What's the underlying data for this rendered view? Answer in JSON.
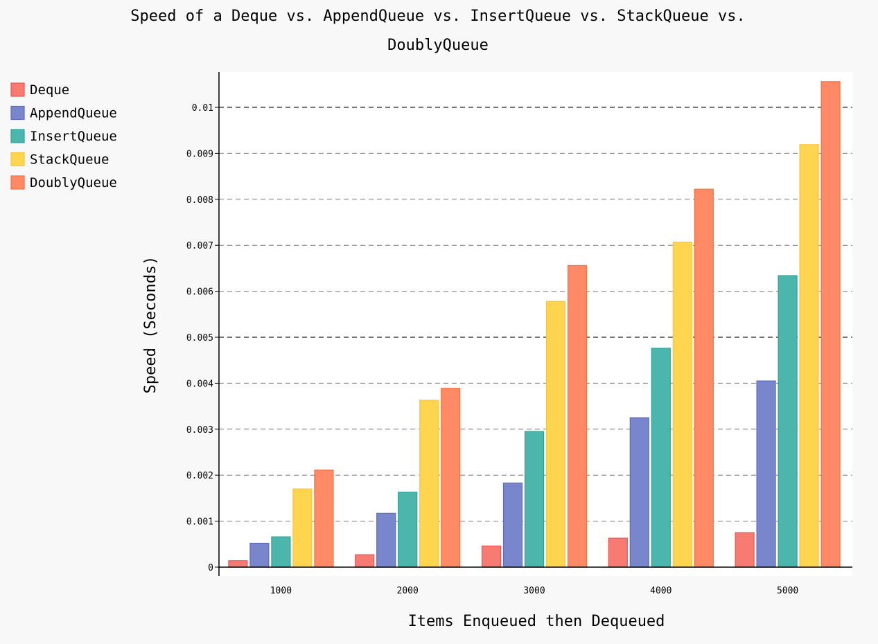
{
  "chart_data": {
    "type": "bar",
    "title_lines": [
      "Speed of a Deque vs. AppendQueue vs. InsertQueue vs. StackQueue vs.",
      "DoublyQueue"
    ],
    "xlabel": "Items Enqueued then Dequeued",
    "ylabel": "Speed (Seconds)",
    "categories": [
      "1000",
      "2000",
      "3000",
      "4000",
      "5000"
    ],
    "ylim": [
      0,
      0.0108
    ],
    "yticks": [
      {
        "value": 0,
        "label": "0"
      },
      {
        "value": 0.001,
        "label": "0.001"
      },
      {
        "value": 0.002,
        "label": "0.002"
      },
      {
        "value": 0.003,
        "label": "0.003"
      },
      {
        "value": 0.004,
        "label": "0.004"
      },
      {
        "value": 0.005,
        "label": "0.005"
      },
      {
        "value": 0.006,
        "label": "0.006"
      },
      {
        "value": 0.007,
        "label": "0.007"
      },
      {
        "value": 0.008,
        "label": "0.008"
      },
      {
        "value": 0.009,
        "label": "0.009"
      },
      {
        "value": 0.01,
        "label": "0.01"
      }
    ],
    "major_gridlines": [
      0.005,
      0.01
    ],
    "grid": true,
    "legend_position": "top-left",
    "series": [
      {
        "name": "Deque",
        "color": "#f77a73",
        "stroke": "#e8554e",
        "values": [
          0.00014,
          0.00027,
          0.00046,
          0.00063,
          0.00075
        ]
      },
      {
        "name": "AppendQueue",
        "color": "#7986cb",
        "stroke": "#5c6bc0",
        "values": [
          0.00052,
          0.00117,
          0.00183,
          0.00325,
          0.00405
        ]
      },
      {
        "name": "InsertQueue",
        "color": "#4db6ac",
        "stroke": "#26a69a",
        "values": [
          0.00066,
          0.00163,
          0.00295,
          0.00476,
          0.00634
        ]
      },
      {
        "name": "StackQueue",
        "color": "#ffd54f",
        "stroke": "#f9c63b",
        "values": [
          0.0017,
          0.00363,
          0.00578,
          0.00707,
          0.00919
        ]
      },
      {
        "name": "DoublyQueue",
        "color": "#ff8a65",
        "stroke": "#f4703f",
        "values": [
          0.00211,
          0.00389,
          0.00656,
          0.00822,
          0.01056
        ]
      }
    ]
  }
}
